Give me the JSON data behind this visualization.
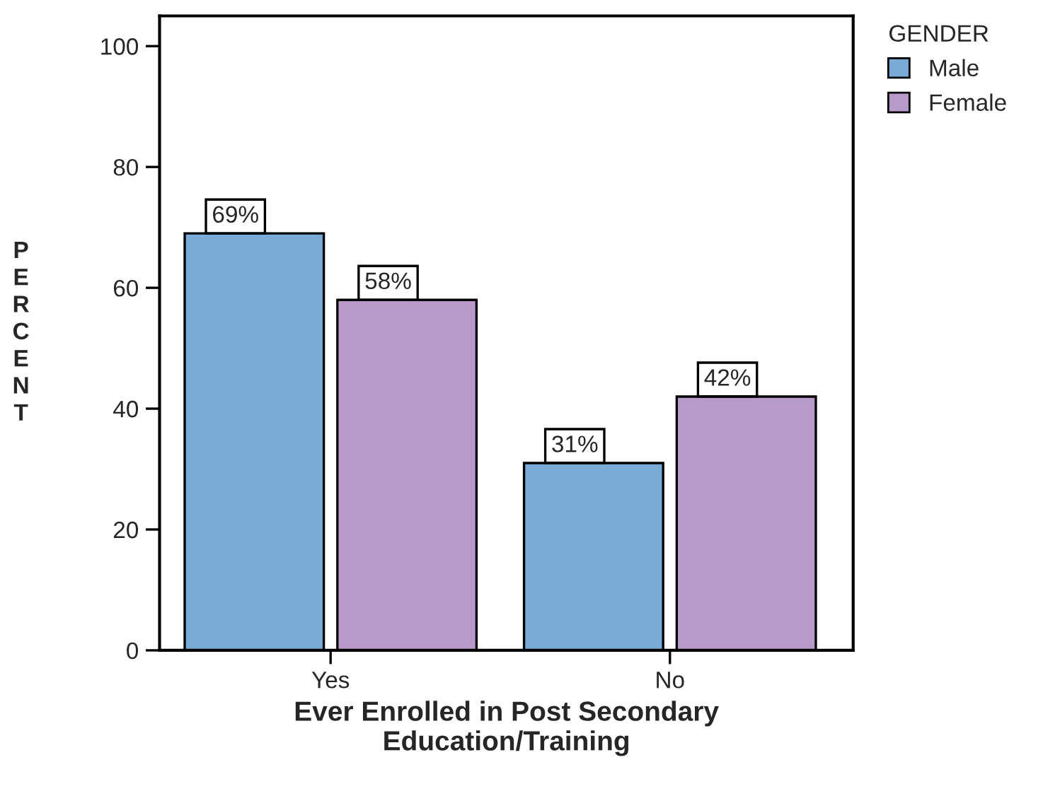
{
  "chart_data": {
    "type": "bar",
    "xlabel": "Ever Enrolled in Post Secondary\nEducation/Training",
    "ylabel": "PERCENT",
    "legend_title": "GENDER",
    "categories": [
      "Yes",
      "No"
    ],
    "series": [
      {
        "name": "Male",
        "color": "#7aaad6",
        "values": [
          69,
          31
        ],
        "value_labels": [
          "69%",
          "31%"
        ]
      },
      {
        "name": "Female",
        "color": "#b89aca",
        "values": [
          58,
          42
        ],
        "value_labels": [
          "58%",
          "42%"
        ]
      }
    ],
    "ylim": [
      0,
      105
    ],
    "yticks": [
      0,
      20,
      40,
      60,
      80,
      100
    ],
    "grid": false,
    "legend": "top right"
  }
}
